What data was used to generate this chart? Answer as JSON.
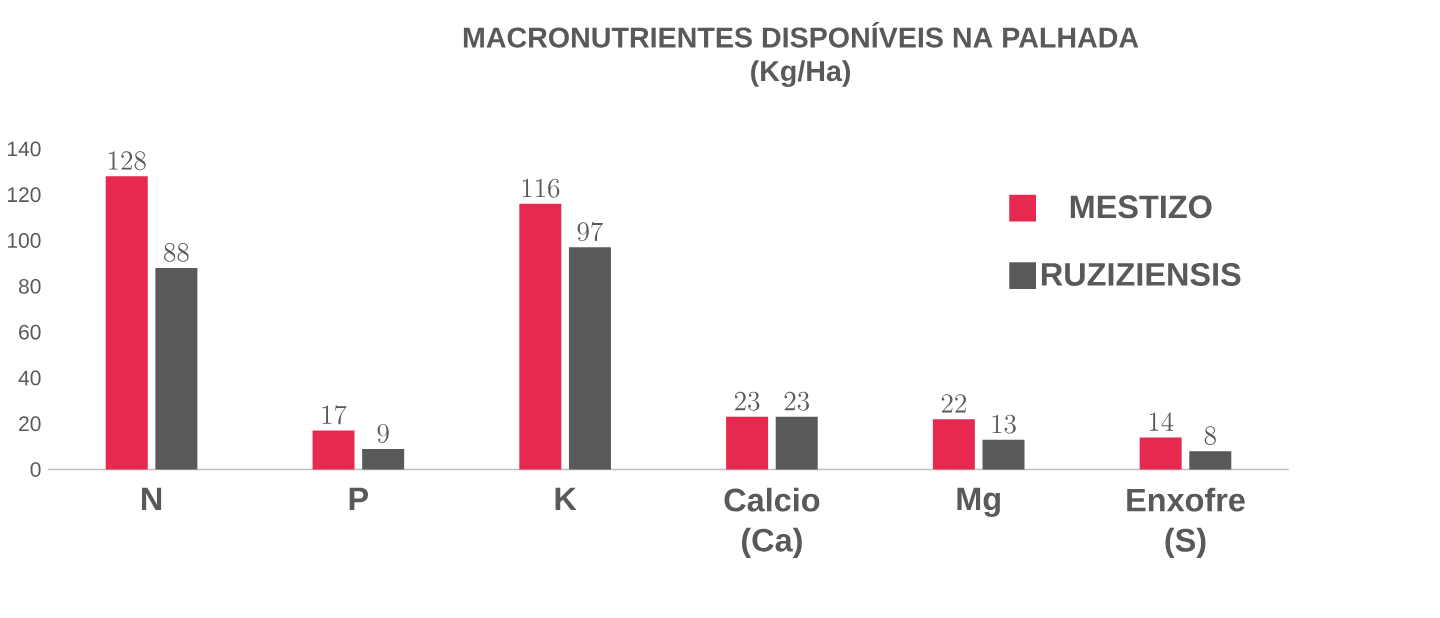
{
  "chart_data": {
    "type": "bar",
    "title": "MACRONUTRIENTES DISPONÍVEIS NA PALHADA",
    "subtitle": "(Kg/Ha)",
    "categories": [
      "N",
      "P",
      "K",
      "Calcio (Ca)",
      "Mg",
      "Enxofre (S)"
    ],
    "series": [
      {
        "name": "MESTIZO",
        "color": "#e8294f",
        "values": [
          128,
          17,
          116,
          23,
          22,
          14
        ]
      },
      {
        "name": "RUZIZIENSIS",
        "color": "#595959",
        "values": [
          88,
          9,
          97,
          23,
          13,
          8
        ]
      }
    ],
    "ylim": [
      0,
      140
    ],
    "yticks": [
      0,
      20,
      40,
      60,
      80,
      100,
      120,
      140
    ],
    "data_labels": true,
    "legend": "top right",
    "grid": false
  }
}
